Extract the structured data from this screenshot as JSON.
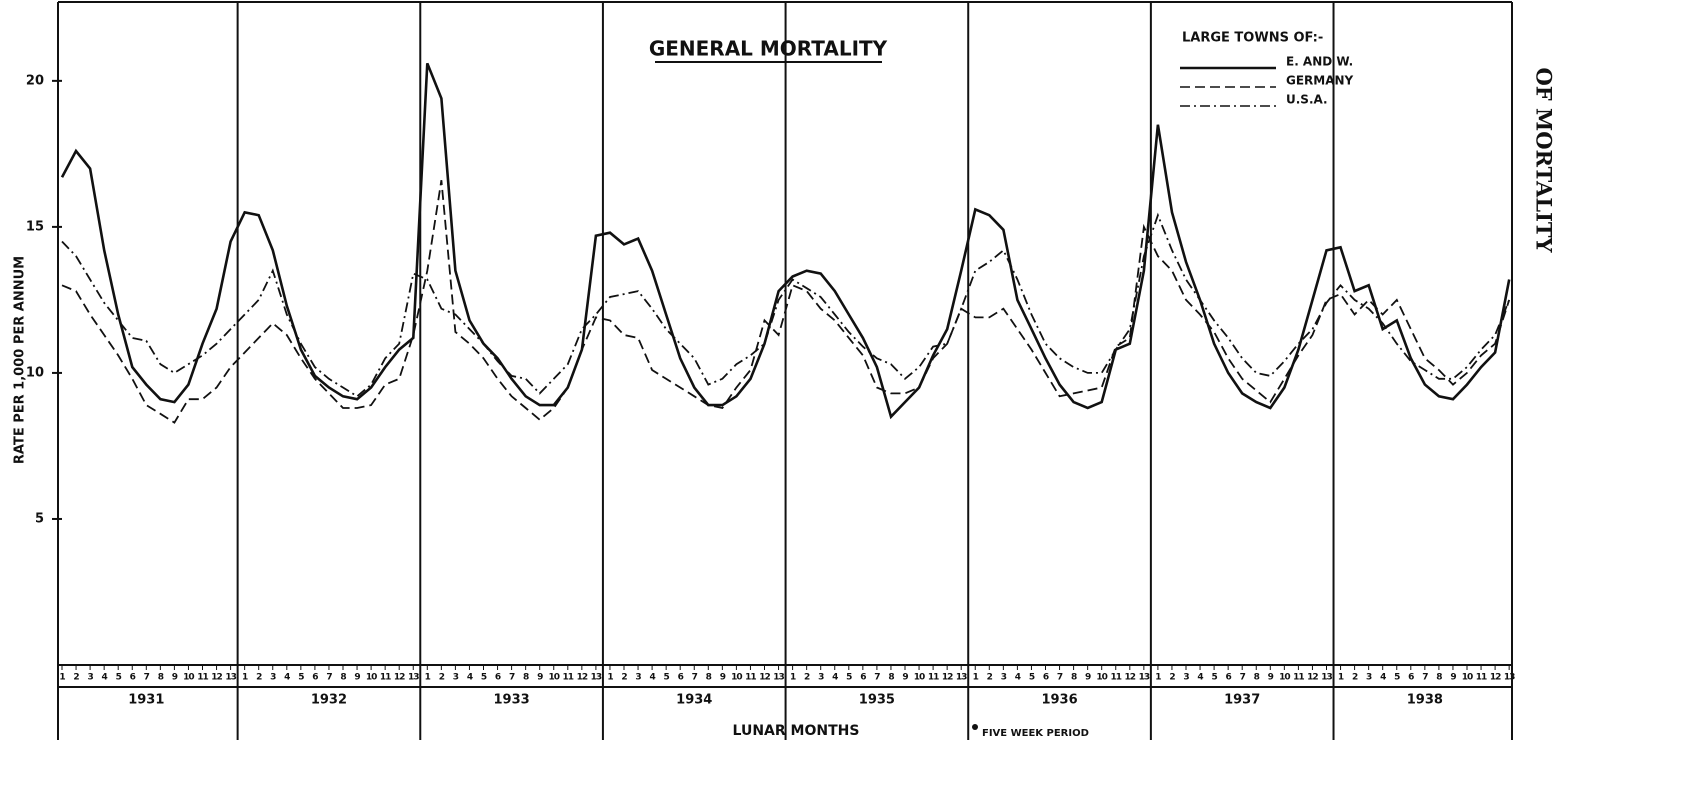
{
  "chart_data": {
    "type": "line",
    "title": "GENERAL MORTALITY",
    "y_label": "RATE PER 1,000 PER ANNUM",
    "x_label": "LUNAR MONTHS",
    "side_label": "OF MORTALITY",
    "note": "FIVE WEEK PERIOD",
    "legend_title": "LARGE TOWNS OF:-",
    "years": [
      "1931",
      "1932",
      "1933",
      "1934",
      "1935",
      "1936",
      "1937",
      "1938"
    ],
    "categories": [
      "1",
      "2",
      "3",
      "4",
      "5",
      "6",
      "7",
      "8",
      "9",
      "10",
      "11",
      "12",
      "13",
      "1",
      "2",
      "3",
      "4",
      "5",
      "6",
      "7",
      "8",
      "9",
      "10",
      "11",
      "12",
      "13",
      "1",
      "2",
      "3",
      "4",
      "5",
      "6",
      "7",
      "8",
      "9",
      "10",
      "11",
      "12",
      "13",
      "1",
      "2",
      "3",
      "4",
      "5",
      "6",
      "7",
      "8",
      "9",
      "10",
      "11",
      "12",
      "13",
      "1",
      "2",
      "3",
      "4",
      "5",
      "6",
      "7",
      "8",
      "9",
      "10",
      "11",
      "12",
      "13",
      "1",
      "2",
      "3",
      "4",
      "5",
      "6",
      "7",
      "8",
      "9",
      "10",
      "11",
      "12",
      "13",
      "1",
      "2",
      "3",
      "4",
      "5",
      "6",
      "7",
      "8",
      "9",
      "10",
      "11",
      "12",
      "13",
      "1",
      "2",
      "3",
      "4",
      "5",
      "6",
      "7",
      "8",
      "9",
      "10",
      "11",
      "12",
      "13"
    ],
    "series": [
      {
        "name": "E. AND W.",
        "color": "#111111",
        "style": "solid",
        "values": [
          16.7,
          17.6,
          17.0,
          14.2,
          12.0,
          10.2,
          9.6,
          9.1,
          9.0,
          9.6,
          11.0,
          12.2,
          14.5,
          15.5,
          15.4,
          14.2,
          12.3,
          10.8,
          9.9,
          9.5,
          9.2,
          9.1,
          9.5,
          10.2,
          10.8,
          11.2,
          20.6,
          19.4,
          13.5,
          11.8,
          11.0,
          10.5,
          9.8,
          9.2,
          8.9,
          8.9,
          9.5,
          10.8,
          14.7,
          14.8,
          14.4,
          14.6,
          13.5,
          12.0,
          10.5,
          9.5,
          8.9,
          8.9,
          9.2,
          9.8,
          11.0,
          12.8,
          13.3,
          13.5,
          13.4,
          12.8,
          12.0,
          11.2,
          10.2,
          8.5,
          9.0,
          9.5,
          10.6,
          11.5,
          13.5,
          15.6,
          15.4,
          14.9,
          12.5,
          11.5,
          10.5,
          9.6,
          9.0,
          8.8,
          9.0,
          10.8,
          11.0,
          13.5,
          18.5,
          15.5,
          13.8,
          12.5,
          11.0,
          10.0,
          9.3,
          9.0,
          8.8,
          9.5,
          10.8,
          12.5,
          14.2,
          14.3,
          12.8,
          13.0,
          11.5,
          11.8,
          10.5,
          9.6,
          9.2,
          9.1,
          9.6,
          10.2,
          10.7,
          13.2
        ]
      },
      {
        "name": "GERMANY",
        "color": "#111111",
        "style": "dashed",
        "values": [
          13.0,
          12.8,
          12.0,
          11.3,
          10.6,
          9.8,
          8.9,
          8.6,
          8.3,
          9.1,
          9.1,
          9.5,
          10.2,
          10.7,
          11.2,
          11.7,
          11.3,
          10.5,
          9.8,
          9.3,
          8.8,
          8.8,
          8.9,
          9.6,
          9.8,
          11.3,
          13.5,
          16.6,
          11.4,
          11.0,
          10.5,
          9.8,
          9.2,
          8.8,
          8.4,
          8.8,
          9.5,
          10.8,
          11.9,
          11.8,
          11.3,
          11.2,
          10.1,
          9.8,
          9.5,
          9.2,
          8.9,
          8.8,
          9.5,
          10.1,
          11.8,
          11.3,
          13.0,
          12.8,
          12.2,
          11.8,
          11.2,
          10.6,
          9.5,
          9.3,
          9.3,
          9.5,
          10.5,
          11.0,
          12.2,
          11.9,
          11.9,
          12.2,
          11.5,
          10.8,
          10.0,
          9.2,
          9.3,
          9.4,
          9.5,
          10.9,
          11.2,
          15.0,
          14.0,
          13.5,
          12.5,
          12.0,
          11.4,
          10.5,
          9.8,
          9.4,
          9.0,
          9.8,
          10.6,
          11.3,
          12.5,
          12.7,
          12.0,
          12.5,
          12.0,
          12.5,
          11.5,
          10.5,
          10.1,
          9.6,
          10.0,
          10.6,
          11.0,
          12.5
        ]
      },
      {
        "name": "U.S.A.",
        "color": "#111111",
        "style": "dashdot",
        "values": [
          14.5,
          14.0,
          13.2,
          12.4,
          11.8,
          11.2,
          11.1,
          10.3,
          10.0,
          10.3,
          10.6,
          11.0,
          11.5,
          12.0,
          12.5,
          13.5,
          12.0,
          11.0,
          10.2,
          9.8,
          9.5,
          9.2,
          9.6,
          10.5,
          11.0,
          13.4,
          13.2,
          12.2,
          12.0,
          11.5,
          11.0,
          10.4,
          9.9,
          9.8,
          9.3,
          9.8,
          10.3,
          11.5,
          12.0,
          12.6,
          12.7,
          12.8,
          12.2,
          11.5,
          11.0,
          10.5,
          9.6,
          9.8,
          10.3,
          10.6,
          11.0,
          12.5,
          13.2,
          12.9,
          12.6,
          12.0,
          11.4,
          10.9,
          10.5,
          10.3,
          9.8,
          10.2,
          10.9,
          11.0,
          12.2,
          13.5,
          13.8,
          14.2,
          13.2,
          12.0,
          11.0,
          10.5,
          10.2,
          10.0,
          10.0,
          10.8,
          11.5,
          14.0,
          15.4,
          14.2,
          13.2,
          12.5,
          11.8,
          11.2,
          10.5,
          10.0,
          9.9,
          10.4,
          11.0,
          11.5,
          12.4,
          13.0,
          12.5,
          12.2,
          11.7,
          11.0,
          10.4,
          10.1,
          9.8,
          9.8,
          10.2,
          10.8,
          11.3,
          12.5
        ]
      }
    ],
    "ylim": [
      0,
      22.7
    ],
    "yticks": [
      5,
      10,
      15,
      20
    ],
    "legend": "upper right"
  }
}
